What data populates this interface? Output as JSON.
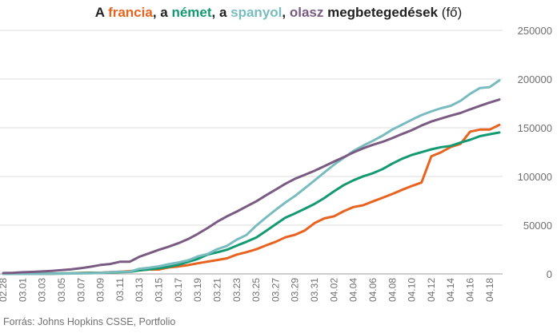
{
  "title": {
    "prefix": "A ",
    "france": "francia",
    "sep1": ", a ",
    "germany": "német",
    "sep2": ", a ",
    "spain": "spanyol",
    "sep3": ", ",
    "italy": "olasz",
    "suffix": " megbetegedések",
    "unit": " (fő)"
  },
  "source": "Forrás: Johns Hopkins CSSE, Portfolio",
  "colors": {
    "france": "#e8631f",
    "germany": "#139a72",
    "spain": "#79bcbf",
    "italy": "#7a5b82",
    "grid": "#dcdcdc",
    "axis": "#9e9e9e",
    "tick_text": "#6f6f6f"
  },
  "chart_data": {
    "type": "line",
    "title": "A francia, a német, a spanyol, olasz megbetegedések (fő)",
    "xlabel": "",
    "ylabel": "",
    "ylim": [
      0,
      250000
    ],
    "yticks": [
      0,
      50000,
      100000,
      150000,
      200000,
      250000
    ],
    "ytick_labels": [
      "0",
      "50000",
      "100000",
      "150000",
      "200000",
      "250000"
    ],
    "y_axis_side": "right",
    "grid": "horizontal",
    "legend": "none (series named by colored words in title)",
    "x": [
      "02.28",
      "02.29",
      "03.01",
      "03.02",
      "03.03",
      "03.04",
      "03.05",
      "03.06",
      "03.07",
      "03.08",
      "03.09",
      "03.10",
      "03.11",
      "03.12",
      "03.13",
      "03.14",
      "03.15",
      "03.16",
      "03.17",
      "03.18",
      "03.19",
      "03.20",
      "03.21",
      "03.22",
      "03.23",
      "03.24",
      "03.25",
      "03.26",
      "03.27",
      "03.28",
      "03.29",
      "03.30",
      "03.31",
      "04.01",
      "04.02",
      "04.03",
      "04.04",
      "04.05",
      "04.06",
      "04.07",
      "04.08",
      "04.09",
      "04.10",
      "04.11",
      "04.12",
      "04.13",
      "04.14",
      "04.15",
      "04.16",
      "04.17",
      "04.18",
      "04.19"
    ],
    "x_tick_labels": [
      "02.28",
      "03.01",
      "03.03",
      "03.05",
      "03.07",
      "03.09",
      "03.11",
      "03.13",
      "03.15",
      "03.17",
      "03.19",
      "03.21",
      "03.23",
      "03.25",
      "03.27",
      "03.29",
      "03.31",
      "04.02",
      "04.04",
      "04.06",
      "04.08",
      "04.10",
      "04.12",
      "04.14",
      "04.16",
      "04.18"
    ],
    "series": [
      {
        "name": "francia",
        "color_key": "france",
        "values": [
          57,
          100,
          130,
          191,
          212,
          285,
          423,
          613,
          949,
          1126,
          1209,
          1784,
          2281,
          2876,
          3661,
          4469,
          4499,
          6633,
          7652,
          9043,
          10871,
          12612,
          14282,
          16018,
          19856,
          22304,
          25233,
          29155,
          32964,
          37575,
          40174,
          44550,
          52128,
          56989,
          59105,
          64338,
          68605,
          70478,
          74390,
          78167,
          82048,
          86334,
          90276,
          93790,
          120633,
          124869,
          130253,
          133470,
          146075,
          148084,
          148086,
          152978
        ]
      },
      {
        "name": "német",
        "color_key": "germany",
        "values": [
          48,
          79,
          130,
          159,
          196,
          262,
          482,
          670,
          799,
          1040,
          1176,
          1457,
          1908,
          2078,
          3675,
          4585,
          5795,
          7272,
          9257,
          12327,
          15320,
          19848,
          22213,
          24873,
          29056,
          32986,
          37323,
          43938,
          50871,
          57695,
          62095,
          66885,
          71808,
          77872,
          84794,
          91159,
          96092,
          100123,
          103374,
          107663,
          113296,
          118181,
          122171,
          124908,
          127854,
          130072,
          131359,
          134753,
          137698,
          141397,
          143342,
          145184
        ]
      },
      {
        "name": "spanyol",
        "color_key": "spain",
        "values": [
          32,
          45,
          84,
          120,
          165,
          222,
          259,
          400,
          500,
          673,
          1073,
          1695,
          2277,
          2277,
          5232,
          6391,
          7798,
          9942,
          11748,
          13910,
          17963,
          20410,
          25374,
          28768,
          35136,
          39885,
          49515,
          57786,
          65719,
          73235,
          80110,
          87956,
          95923,
          104118,
          112065,
          119199,
          126168,
          131646,
          136675,
          141942,
          148220,
          153222,
          158273,
          163027,
          166831,
          170099,
          172541,
          177644,
          184948,
          190839,
          191726,
          198674
        ]
      },
      {
        "name": "olasz",
        "color_key": "italy",
        "values": [
          888,
          1128,
          1694,
          2036,
          2502,
          3089,
          3858,
          4636,
          5883,
          7375,
          9172,
          10149,
          12462,
          12462,
          17660,
          21157,
          24747,
          27980,
          31506,
          35713,
          41035,
          47021,
          53578,
          59138,
          63927,
          69176,
          74386,
          80589,
          86498,
          92472,
          97689,
          101739,
          105792,
          110574,
          115242,
          119827,
          124632,
          128948,
          132547,
          135586,
          139422,
          143626,
          147577,
          152271,
          156363,
          159516,
          162488,
          165155,
          168941,
          172434,
          175925,
          178972
        ]
      }
    ]
  }
}
